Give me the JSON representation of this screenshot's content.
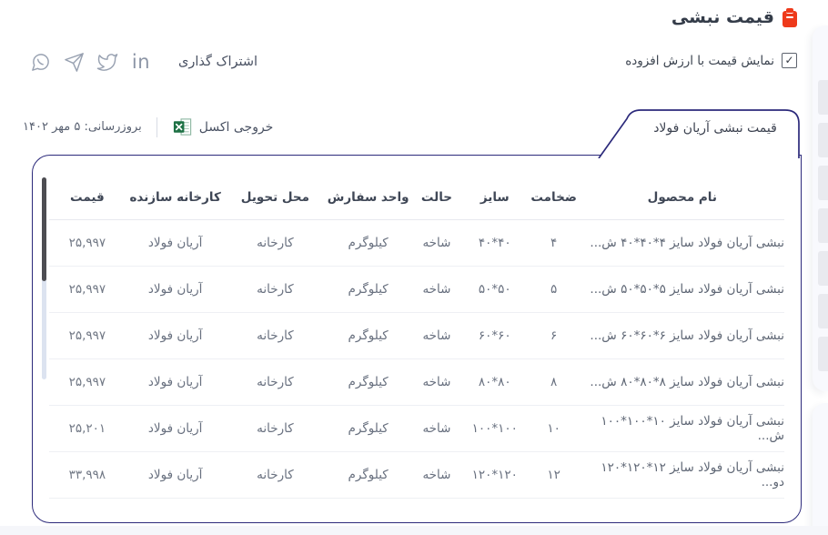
{
  "header": {
    "title": "قیمت نبشی",
    "title_icon": "clipboard-icon",
    "vat_checkbox": {
      "label": "نمایش قیمت با ارزش افزوده",
      "checked": true
    }
  },
  "share": {
    "label": "اشتراک گذاری",
    "icons": [
      "whatsapp-icon",
      "telegram-icon",
      "twitter-icon",
      "linkedin-icon"
    ],
    "linkedin_glyph": "in"
  },
  "export": {
    "excel_label": "خروجی اکسل",
    "excel_icon": "excel-icon",
    "updated_text": "بروزرسانی: ۵ مهر ۱۴۰۲"
  },
  "tab": {
    "label": "قیمت نبشی آریان فولاد"
  },
  "table": {
    "headers": [
      "نام محصول",
      "ضخامت",
      "سایز",
      "حالت",
      "واحد سفارش",
      "محل تحویل",
      "کارخانه سازنده",
      "قیمت"
    ],
    "rows": [
      {
        "name": "نبشی آریان فولاد سایز ۴*۴۰*۴۰ ش...",
        "thickness": "۴",
        "size": "۴۰*۴۰",
        "state": "شاخه",
        "unit": "کیلوگرم",
        "delivery": "کارخانه",
        "manufacturer": "آریان فولاد",
        "price": "۲۵,۹۹۷"
      },
      {
        "name": "نبشی آریان فولاد سایز ۵*۵۰*۵۰ ش...",
        "thickness": "۵",
        "size": "۵۰*۵۰",
        "state": "شاخه",
        "unit": "کیلوگرم",
        "delivery": "کارخانه",
        "manufacturer": "آریان فولاد",
        "price": "۲۵,۹۹۷"
      },
      {
        "name": "نبشی آریان فولاد سایز ۶*۶۰*۶۰ ش...",
        "thickness": "۶",
        "size": "۶۰*۶۰",
        "state": "شاخه",
        "unit": "کیلوگرم",
        "delivery": "کارخانه",
        "manufacturer": "آریان فولاد",
        "price": "۲۵,۹۹۷"
      },
      {
        "name": "نبشی آریان فولاد سایز ۸*۸۰*۸۰ ش...",
        "thickness": "۸",
        "size": "۸۰*۸۰",
        "state": "شاخه",
        "unit": "کیلوگرم",
        "delivery": "کارخانه",
        "manufacturer": "آریان فولاد",
        "price": "۲۵,۹۹۷"
      },
      {
        "name": "نبشی آریان فولاد سایز ۱۰*۱۰۰*۱۰۰ ش...",
        "thickness": "۱۰",
        "size": "۱۰۰*۱۰۰",
        "state": "شاخه",
        "unit": "کیلوگرم",
        "delivery": "کارخانه",
        "manufacturer": "آریان فولاد",
        "price": "۲۵,۲۰۱"
      },
      {
        "name": "نبشی آریان فولاد سایز ۱۲*۱۲۰*۱۲۰ دو...",
        "thickness": "۱۲",
        "size": "۱۲۰*۱۲۰",
        "state": "شاخه",
        "unit": "کیلوگرم",
        "delivery": "کارخانه",
        "manufacturer": "آریان فولاد",
        "price": "۳۳,۹۹۸"
      }
    ]
  },
  "colors": {
    "accent_border": "#2c2a7b",
    "title_icon_red": "#ee3a1b",
    "excel_green": "#1e7145",
    "scrollbar_thumb": "#4d4d52",
    "scrollbar_track": "#dce3f0"
  }
}
